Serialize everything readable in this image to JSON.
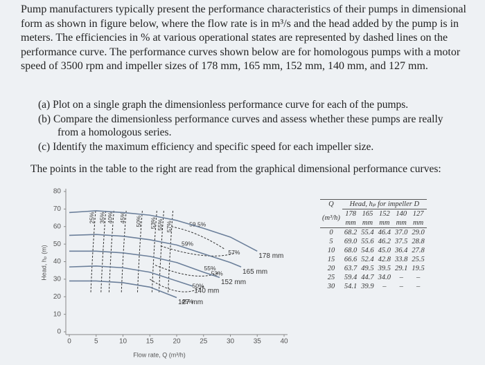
{
  "problem": {
    "intro": "Pump manufacturers typically present the performance characteristics of their pumps in dimensional form as shown in figure below, where the flow rate is in m³/s and the head added by the pump is in meters. The efficiencies in % at various operational states are represented by dashed lines on the performance curve. The performance curves shown below are for homologous pumps with a motor speed of 3500 rpm and impeller sizes of 178 mm, 165 mm, 152 mm, 140 mm, and 127 mm.",
    "parts": [
      "(a) Plot on a single graph the dimensionless performance curve for each of the pumps.",
      "(b) Compare the dimensionless performance curves and assess whether these pumps are really from a homologous series.",
      "(c) Identify the maximum efficiency and specific speed for each impeller size."
    ],
    "lead": "The points in the table to the right are read from the graphical dimensional performance curves:"
  },
  "figure": {
    "type": "line",
    "x_label": "Flow rate, Q (m³/h)",
    "y_label": "Head, hₚ (m)",
    "xlim": [
      0,
      40
    ],
    "xticks": [
      0,
      5,
      10,
      15,
      20,
      25,
      30,
      35,
      40
    ],
    "ylim": [
      0,
      80
    ],
    "yticks": [
      0,
      10,
      20,
      30,
      40,
      50,
      60,
      70,
      80
    ],
    "color": "#6b7f9a",
    "series": [
      {
        "name": "178 mm",
        "x": [
          0,
          5,
          10,
          15,
          20,
          25,
          30,
          35
        ],
        "values": [
          68,
          69,
          68,
          66.5,
          63.5,
          59,
          54,
          46
        ]
      },
      {
        "name": "165 mm",
        "x": [
          0,
          5,
          10,
          15,
          20,
          25,
          30,
          32
        ],
        "values": [
          55,
          55.5,
          54.5,
          52.5,
          49.5,
          44.5,
          39.5,
          37
        ]
      },
      {
        "name": "152 mm",
        "x": [
          0,
          5,
          10,
          15,
          20,
          25,
          28
        ],
        "values": [
          46,
          46,
          45,
          43,
          39.5,
          34,
          31
        ]
      },
      {
        "name": "140 mm",
        "x": [
          0,
          5,
          10,
          15,
          20,
          23
        ],
        "values": [
          37,
          37.5,
          36.5,
          34,
          29,
          26
        ]
      },
      {
        "name": "127 mm",
        "x": [
          0,
          5,
          10,
          15,
          20
        ],
        "values": [
          29,
          29,
          28,
          25.5,
          19.5
        ]
      }
    ],
    "efficiency_labels": [
      "25%",
      "35%",
      "40%",
      "45%",
      "50%",
      "53%",
      "55%",
      "57%",
      "59.5%",
      "59%",
      "57%",
      "55%",
      "53%",
      "50%",
      "45%"
    ]
  },
  "table": {
    "q_header": "Q",
    "head_header": "Head, hₚ for impeller D",
    "q_unit": "(m³/h)",
    "diameters": [
      "178",
      "165",
      "152",
      "140",
      "127"
    ],
    "diameter_unit": "mm",
    "rows": [
      [
        "0",
        "68.2",
        "55.4",
        "46.4",
        "37.0",
        "29.0"
      ],
      [
        "5",
        "69.0",
        "55.6",
        "46.2",
        "37.5",
        "28.8"
      ],
      [
        "10",
        "68.0",
        "54.6",
        "45.0",
        "36.4",
        "27.8"
      ],
      [
        "15",
        "66.6",
        "52.4",
        "42.8",
        "33.8",
        "25.5"
      ],
      [
        "20",
        "63.7",
        "49.5",
        "39.5",
        "29.1",
        "19.5"
      ],
      [
        "25",
        "59.4",
        "44.7",
        "34.0",
        "–",
        "–"
      ],
      [
        "30",
        "54.1",
        "39.9",
        "–",
        "–",
        "–"
      ]
    ]
  }
}
